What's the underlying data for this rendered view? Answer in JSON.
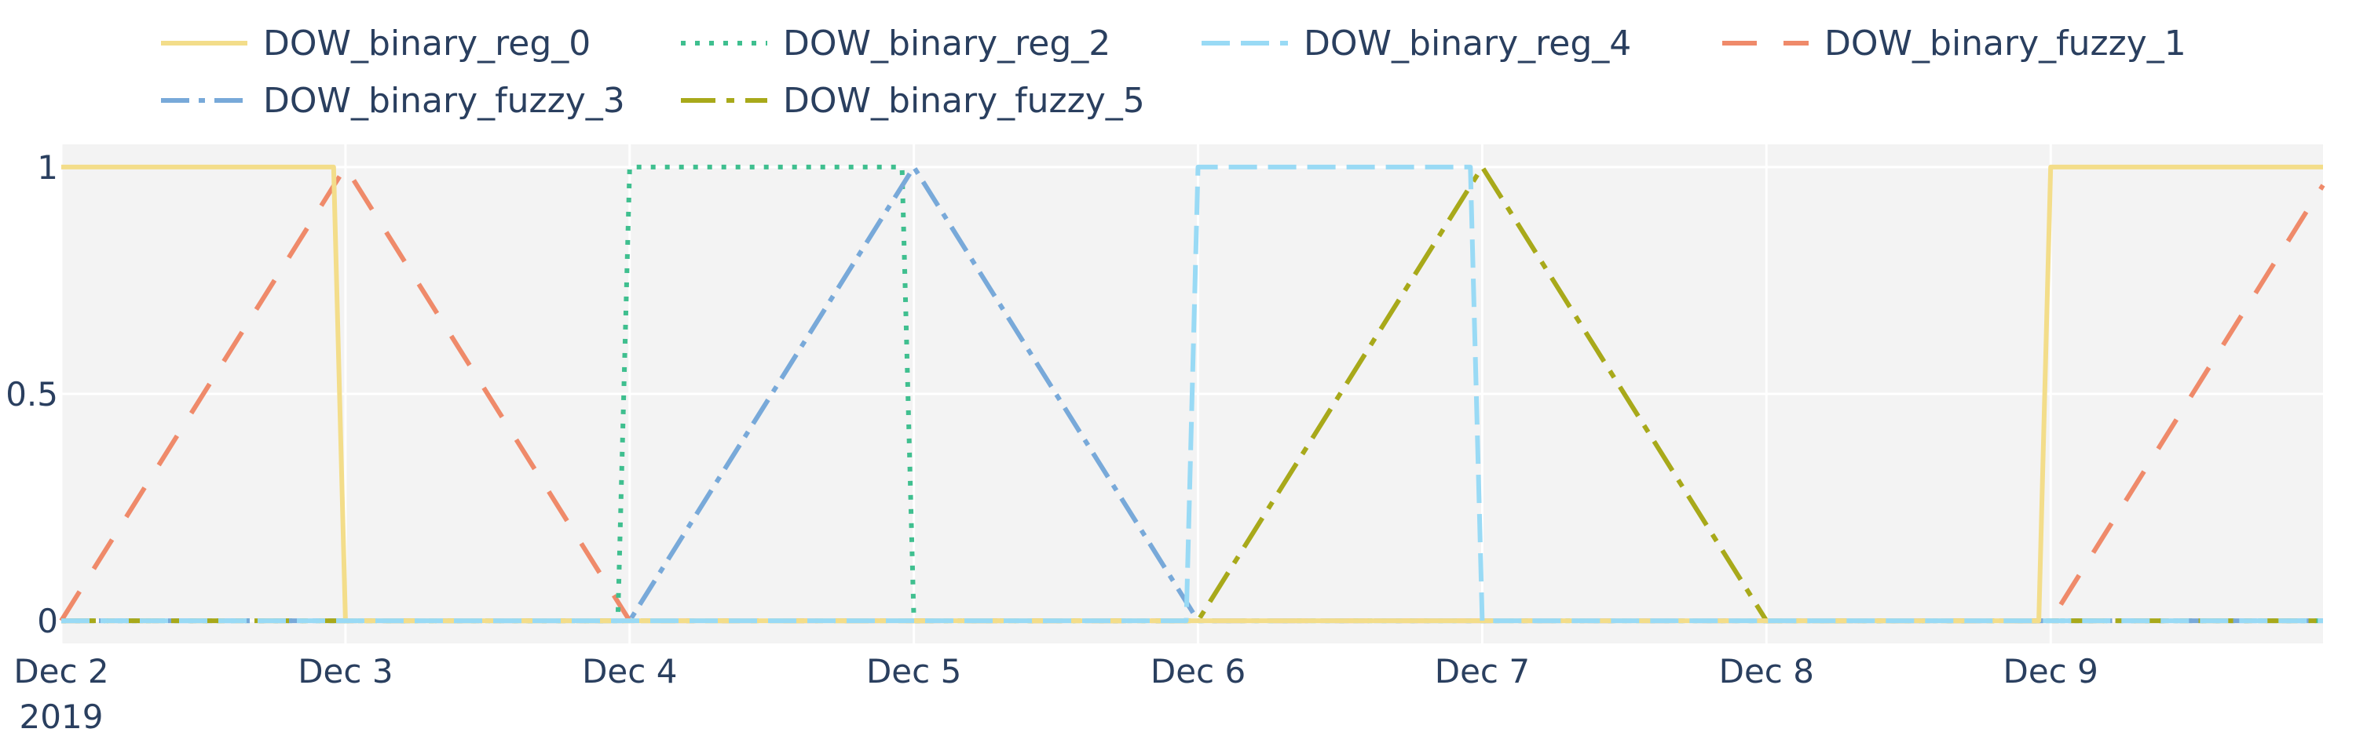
{
  "chart_data": {
    "type": "line",
    "x_axis": {
      "type": "date",
      "range": [
        "2019-12-02",
        "2019-12-09T23:00"
      ],
      "ticks": [
        {
          "value": "2019-12-02",
          "label": "Dec 2",
          "sublabel": "2019"
        },
        {
          "value": "2019-12-03",
          "label": "Dec 3"
        },
        {
          "value": "2019-12-04",
          "label": "Dec 4"
        },
        {
          "value": "2019-12-05",
          "label": "Dec 5"
        },
        {
          "value": "2019-12-06",
          "label": "Dec 6"
        },
        {
          "value": "2019-12-07",
          "label": "Dec 7"
        },
        {
          "value": "2019-12-08",
          "label": "Dec 8"
        },
        {
          "value": "2019-12-09",
          "label": "Dec 9"
        }
      ]
    },
    "y_axis": {
      "range": [
        -0.05,
        1.05
      ],
      "ticks": [
        {
          "value": 0,
          "label": "0"
        },
        {
          "value": 0.5,
          "label": "0.5"
        },
        {
          "value": 1,
          "label": "1"
        }
      ]
    },
    "grid": true,
    "legend_position": "top",
    "plot_background": "#f3f3f3",
    "series": [
      {
        "name": "DOW_binary_reg_0",
        "color": "#f3dd8a",
        "dash": "solid",
        "draw_order": 5,
        "x": [
          "2019-12-02",
          "2019-12-02T23:00",
          "2019-12-03",
          "2019-12-08T23:00",
          "2019-12-09",
          "2019-12-09T23:00"
        ],
        "y": [
          1,
          1,
          0,
          0,
          1,
          1
        ]
      },
      {
        "name": "DOW_binary_reg_2",
        "color": "#3fbf8f",
        "dash": "dot",
        "draw_order": 2,
        "x": [
          "2019-12-02",
          "2019-12-03T23:00",
          "2019-12-04",
          "2019-12-04T23:00",
          "2019-12-05",
          "2019-12-09T23:00"
        ],
        "y": [
          0,
          0,
          1,
          1,
          0,
          0
        ]
      },
      {
        "name": "DOW_binary_reg_4",
        "color": "#99daf5",
        "dash": "dash",
        "draw_order": 6,
        "x": [
          "2019-12-02",
          "2019-12-05T23:00",
          "2019-12-06",
          "2019-12-06T23:00",
          "2019-12-07",
          "2019-12-09T23:00"
        ],
        "y": [
          0,
          0,
          1,
          1,
          0,
          0
        ]
      },
      {
        "name": "DOW_binary_fuzzy_1",
        "color": "#ef8a6a",
        "dash": "longdash",
        "draw_order": 1,
        "x": [
          "2019-12-02",
          "2019-12-03",
          "2019-12-04",
          "2019-12-09",
          "2019-12-09T23:00"
        ],
        "y": [
          0,
          1,
          0,
          0,
          0.96
        ]
      },
      {
        "name": "DOW_binary_fuzzy_3",
        "color": "#78a9d9",
        "dash": "dashdot",
        "draw_order": 3,
        "x": [
          "2019-12-02",
          "2019-12-04",
          "2019-12-05",
          "2019-12-06",
          "2019-12-09T23:00"
        ],
        "y": [
          0,
          0,
          1,
          0,
          0
        ]
      },
      {
        "name": "DOW_binary_fuzzy_5",
        "color": "#a8a91a",
        "dash": "longdashdot",
        "draw_order": 4,
        "x": [
          "2019-12-02",
          "2019-12-06",
          "2019-12-07",
          "2019-12-08",
          "2019-12-09T23:00"
        ],
        "y": [
          0,
          0,
          1,
          0,
          0
        ]
      }
    ]
  }
}
